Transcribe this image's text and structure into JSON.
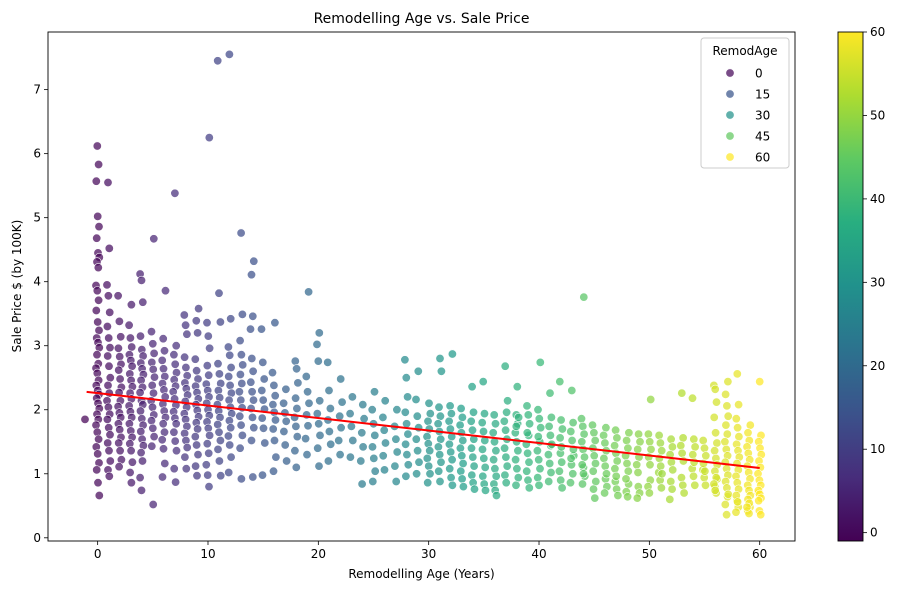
{
  "chart_data": {
    "type": "scatter",
    "title": "Remodelling Age vs. Sale Price",
    "xlabel": "Remodelling Age (Years)",
    "ylabel": "Sale Price $ (by 100K)",
    "xlim": [
      -4.5,
      63.2
    ],
    "ylim": [
      -0.05,
      7.9
    ],
    "xticks": [
      0,
      10,
      20,
      30,
      40,
      50,
      60
    ],
    "yticks": [
      0,
      1,
      2,
      3,
      4,
      5,
      6,
      7
    ],
    "grid": false,
    "colormap": "viridis",
    "color_range": [
      -1,
      60
    ],
    "colorbar_ticks": [
      0,
      10,
      20,
      30,
      40,
      50,
      60
    ],
    "legend": {
      "title": "RemodAge",
      "position": "top-right",
      "entries": [
        "0",
        "15",
        "30",
        "45",
        "60"
      ],
      "entry_values": [
        0,
        15,
        30,
        45,
        60
      ]
    },
    "trend_line": {
      "color": "#ff0000",
      "x": [
        -1,
        60
      ],
      "y": [
        2.28,
        1.09
      ]
    },
    "points_x": [
      -1,
      0,
      0,
      0,
      0,
      0,
      0,
      0,
      0,
      0,
      0,
      0,
      0,
      0,
      0,
      0,
      0,
      0,
      0,
      0,
      0,
      0,
      0,
      0,
      0,
      0,
      0,
      0,
      0,
      0,
      0,
      0,
      0,
      0,
      0,
      0,
      0,
      0,
      0,
      0,
      0,
      0,
      1,
      1,
      1,
      1,
      1,
      1,
      1,
      1,
      1,
      1,
      1,
      1,
      1,
      1,
      1,
      1,
      1,
      1,
      1,
      1,
      1,
      1,
      1,
      1,
      2,
      2,
      2,
      2,
      2,
      2,
      2,
      2,
      2,
      2,
      2,
      2,
      2,
      2,
      2,
      2,
      2,
      2,
      2,
      2,
      2,
      3,
      3,
      3,
      3,
      3,
      3,
      3,
      3,
      3,
      3,
      3,
      3,
      3,
      3,
      3,
      3,
      3,
      3,
      3,
      3,
      3,
      3,
      3,
      4,
      4,
      4,
      4,
      4,
      4,
      4,
      4,
      4,
      4,
      4,
      4,
      4,
      4,
      4,
      4,
      4,
      4,
      4,
      4,
      4,
      4,
      4,
      4,
      5,
      5,
      5,
      5,
      5,
      5,
      5,
      5,
      5,
      5,
      5,
      5,
      5,
      5,
      5,
      5,
      5,
      6,
      6,
      6,
      6,
      6,
      6,
      6,
      6,
      6,
      6,
      6,
      6,
      6,
      6,
      6,
      6,
      6,
      6,
      7,
      7,
      7,
      7,
      7,
      7,
      7,
      7,
      7,
      7,
      7,
      7,
      7,
      7,
      7,
      7,
      7,
      7,
      8,
      8,
      8,
      8,
      8,
      8,
      8,
      8,
      8,
      8,
      8,
      8,
      8,
      8,
      8,
      8,
      8,
      8,
      8,
      9,
      9,
      9,
      9,
      9,
      9,
      9,
      9,
      9,
      9,
      9,
      9,
      9,
      9,
      9,
      9,
      9,
      9,
      9,
      10,
      10,
      10,
      10,
      10,
      10,
      10,
      10,
      10,
      10,
      10,
      10,
      10,
      10,
      10,
      10,
      10,
      10,
      10,
      10,
      11,
      11,
      11,
      11,
      11,
      11,
      11,
      11,
      11,
      11,
      11,
      11,
      11,
      11,
      11,
      11,
      11,
      12,
      12,
      12,
      12,
      12,
      12,
      12,
      12,
      12,
      12,
      12,
      12,
      12,
      12,
      12,
      12,
      12,
      13,
      13,
      13,
      13,
      13,
      13,
      13,
      13,
      13,
      13,
      13,
      13,
      13,
      13,
      13,
      14,
      14,
      14,
      14,
      14,
      14,
      14,
      14,
      14,
      14,
      14,
      14,
      14,
      14,
      15,
      15,
      15,
      15,
      15,
      15,
      15,
      15,
      15,
      15,
      16,
      16,
      16,
      16,
      16,
      16,
      16,
      16,
      16,
      16,
      16,
      17,
      17,
      17,
      17,
      17,
      17,
      17,
      18,
      18,
      18,
      18,
      18,
      18,
      18,
      18,
      18,
      18,
      19,
      19,
      19,
      19,
      19,
      19,
      19,
      19,
      20,
      20,
      20,
      20,
      20,
      20,
      20,
      20,
      20,
      21,
      21,
      21,
      21,
      21,
      21,
      21,
      22,
      22,
      22,
      22,
      22,
      22,
      23,
      23,
      23,
      23,
      23,
      24,
      24,
      24,
      24,
      24,
      24,
      25,
      25,
      25,
      25,
      25,
      25,
      25,
      25,
      26,
      26,
      26,
      26,
      26,
      26,
      27,
      27,
      27,
      27,
      27,
      27,
      28,
      28,
      28,
      28,
      28,
      28,
      28,
      28,
      28,
      28,
      29,
      29,
      29,
      29,
      29,
      29,
      29,
      29,
      30,
      30,
      30,
      30,
      30,
      30,
      30,
      30,
      30,
      30,
      30,
      31,
      31,
      31,
      31,
      31,
      31,
      31,
      31,
      31,
      31,
      31,
      31,
      32,
      32,
      32,
      32,
      32,
      32,
      32,
      32,
      32,
      32,
      32,
      32,
      33,
      33,
      33,
      33,
      33,
      33,
      33,
      33,
      33,
      33,
      33,
      34,
      34,
      34,
      34,
      34,
      34,
      34,
      34,
      34,
      34,
      34,
      35,
      35,
      35,
      35,
      35,
      35,
      35,
      35,
      35,
      35,
      35,
      36,
      36,
      36,
      36,
      36,
      36,
      36,
      36,
      36,
      36,
      36,
      37,
      37,
      37,
      37,
      37,
      37,
      37,
      37,
      37,
      37,
      37,
      38,
      38,
      38,
      38,
      38,
      38,
      38,
      38,
      38,
      38,
      38,
      38,
      39,
      39,
      39,
      39,
      39,
      39,
      39,
      39,
      39,
      39,
      39,
      40,
      40,
      40,
      40,
      40,
      40,
      40,
      40,
      40,
      40,
      40,
      41,
      41,
      41,
      41,
      41,
      41,
      41,
      41,
      41,
      41,
      42,
      42,
      42,
      42,
      42,
      42,
      42,
      42,
      42,
      42,
      43,
      43,
      43,
      43,
      43,
      43,
      43,
      43,
      43,
      43,
      44,
      44,
      44,
      44,
      44,
      44,
      44,
      44,
      44,
      44,
      44,
      44,
      45,
      45,
      45,
      45,
      45,
      45,
      45,
      45,
      45,
      45,
      46,
      46,
      46,
      46,
      46,
      46,
      46,
      46,
      46,
      46,
      47,
      47,
      47,
      47,
      47,
      47,
      47,
      47,
      47,
      47,
      48,
      48,
      48,
      48,
      48,
      48,
      48,
      48,
      48,
      48,
      49,
      49,
      49,
      49,
      49,
      49,
      49,
      49,
      49,
      50,
      50,
      50,
      50,
      50,
      50,
      50,
      50,
      50,
      51,
      51,
      51,
      51,
      51,
      51,
      51,
      51,
      51,
      52,
      52,
      52,
      52,
      52,
      52,
      52,
      52,
      53,
      53,
      53,
      53,
      53,
      53,
      53,
      53,
      54,
      54,
      54,
      54,
      54,
      54,
      54,
      54,
      55,
      55,
      55,
      55,
      55,
      55,
      55,
      55,
      56,
      56,
      56,
      56,
      56,
      56,
      56,
      56,
      56,
      56,
      56,
      56,
      56,
      56,
      56,
      56,
      57,
      57,
      57,
      57,
      57,
      57,
      57,
      57,
      57,
      57,
      57,
      57,
      57,
      57,
      57,
      57,
      57,
      57,
      58,
      58,
      58,
      58,
      58,
      58,
      58,
      58,
      58,
      58,
      58,
      58,
      58,
      58,
      58,
      58,
      58,
      58,
      59,
      59,
      59,
      59,
      59,
      59,
      59,
      59,
      59,
      59,
      59,
      59,
      59,
      59,
      59,
      59,
      59,
      59,
      60,
      60,
      60,
      60,
      60,
      60,
      60,
      60,
      60,
      60,
      60,
      60,
      60,
      60,
      60,
      60,
      60
    ],
    "points_y": [
      1.85,
      6.12,
      5.83,
      5.57,
      5.02,
      4.86,
      4.68,
      4.45,
      4.38,
      4.31,
      4.22,
      3.94,
      3.86,
      3.71,
      3.55,
      3.37,
      3.24,
      3.12,
      3.05,
      2.97,
      2.86,
      2.72,
      2.65,
      2.57,
      2.46,
      2.38,
      2.3,
      2.24,
      2.18,
      2.1,
      2.02,
      1.93,
      1.85,
      1.76,
      1.65,
      1.54,
      1.42,
      1.31,
      1.17,
      1.06,
      0.86,
      0.66,
      5.55,
      4.52,
      3.95,
      3.78,
      3.52,
      3.3,
      3.12,
      2.97,
      2.84,
      2.68,
      2.5,
      2.38,
      2.26,
      2.14,
      2.04,
      1.93,
      1.85,
      1.72,
      1.61,
      1.48,
      1.36,
      1.2,
      1.06,
      0.96,
      3.78,
      3.38,
      3.14,
      2.96,
      2.83,
      2.71,
      2.62,
      2.48,
      2.35,
      2.27,
      2.14,
      2.05,
      1.95,
      1.88,
      1.78,
      1.69,
      1.57,
      1.48,
      1.36,
      1.22,
      1.11,
      3.64,
      3.32,
      3.12,
      2.98,
      2.86,
      2.77,
      2.68,
      2.56,
      2.46,
      2.36,
      2.26,
      2.17,
      2.06,
      1.97,
      1.88,
      1.78,
      1.67,
      1.57,
      1.47,
      1.36,
      1.18,
      1.02,
      0.86,
      4.12,
      4.02,
      3.68,
      3.15,
      2.94,
      2.84,
      2.73,
      2.64,
      2.55,
      2.46,
      2.35,
      2.27,
      2.14,
      2.08,
      1.98,
      1.86,
      1.76,
      1.66,
      1.54,
      1.44,
      1.33,
      1.2,
      0.94,
      0.74,
      4.67,
      3.22,
      3.03,
      2.88,
      2.74,
      2.63,
      2.51,
      2.38,
      2.26,
      2.14,
      2.04,
      1.92,
      1.83,
      1.71,
      1.58,
      1.43,
      0.52,
      3.86,
      3.11,
      2.92,
      2.77,
      2.64,
      2.52,
      2.41,
      2.31,
      2.2,
      2.09,
      1.98,
      1.88,
      1.78,
      1.65,
      1.53,
      1.39,
      1.16,
      0.95,
      5.38,
      3.0,
      2.86,
      2.71,
      2.58,
      2.47,
      2.37,
      2.28,
      2.17,
      2.07,
      1.97,
      1.87,
      1.78,
      1.65,
      1.51,
      1.36,
      1.08,
      0.87,
      3.48,
      3.32,
      3.18,
      2.82,
      2.66,
      2.53,
      2.42,
      2.33,
      2.23,
      2.13,
      2.04,
      1.94,
      1.85,
      1.74,
      1.63,
      1.52,
      1.41,
      1.26,
      1.08,
      3.58,
      3.39,
      3.2,
      2.79,
      2.61,
      2.48,
      2.37,
      2.27,
      2.17,
      2.08,
      1.99,
      1.89,
      1.8,
      1.7,
      1.58,
      1.45,
      1.3,
      1.12,
      0.97,
      6.25,
      3.36,
      3.15,
      2.96,
      2.69,
      2.54,
      2.4,
      2.3,
      2.2,
      2.1,
      2.0,
      1.91,
      1.81,
      1.71,
      1.6,
      1.47,
      1.32,
      1.14,
      0.98,
      0.8,
      7.45,
      3.82,
      3.37,
      2.72,
      2.56,
      2.41,
      2.3,
      2.19,
      2.08,
      1.98,
      1.88,
      1.77,
      1.65,
      1.52,
      1.38,
      1.2,
      0.97,
      7.55,
      3.42,
      2.98,
      2.85,
      2.66,
      2.52,
      2.38,
      2.26,
      2.15,
      2.04,
      1.94,
      1.83,
      1.72,
      1.59,
      1.45,
      1.26,
      1.02,
      4.76,
      3.49,
      3.08,
      2.86,
      2.7,
      2.55,
      2.41,
      2.28,
      2.15,
      2.03,
      1.9,
      1.76,
      1.6,
      1.4,
      0.92,
      4.32,
      4.11,
      3.46,
      3.26,
      2.8,
      2.6,
      2.43,
      2.28,
      2.15,
      2.02,
      1.88,
      1.72,
      1.52,
      0.95,
      3.26,
      2.74,
      2.48,
      2.3,
      2.15,
      2.01,
      1.87,
      1.71,
      1.48,
      0.98,
      3.36,
      2.58,
      2.38,
      2.22,
      2.08,
      1.96,
      1.84,
      1.7,
      1.52,
      1.26,
      1.04,
      2.32,
      2.1,
      1.95,
      1.82,
      1.66,
      1.45,
      1.2,
      2.76,
      2.64,
      2.42,
      2.18,
      2.02,
      1.88,
      1.74,
      1.58,
      1.36,
      1.1,
      3.84,
      2.52,
      2.28,
      2.1,
      1.92,
      1.75,
      1.55,
      1.3,
      3.2,
      3.02,
      2.76,
      2.14,
      1.94,
      1.78,
      1.6,
      1.4,
      1.12,
      2.74,
      2.3,
      2.02,
      1.84,
      1.66,
      1.46,
      1.2,
      2.48,
      2.12,
      1.9,
      1.72,
      1.52,
      1.3,
      2.2,
      1.94,
      1.74,
      1.52,
      1.26,
      2.08,
      1.86,
      1.64,
      1.42,
      1.2,
      0.84,
      2.28,
      2.0,
      1.78,
      1.6,
      1.42,
      1.24,
      1.04,
      0.88,
      2.14,
      1.88,
      1.68,
      1.48,
      1.28,
      1.06,
      2.0,
      1.74,
      1.54,
      1.34,
      1.12,
      0.88,
      2.78,
      2.5,
      2.2,
      1.96,
      1.78,
      1.62,
      1.46,
      1.3,
      1.14,
      0.96,
      2.6,
      2.16,
      1.9,
      1.72,
      1.54,
      1.36,
      1.18,
      1.0,
      2.1,
      1.94,
      1.82,
      1.7,
      1.58,
      1.47,
      1.36,
      1.24,
      1.12,
      1.0,
      0.86,
      2.8,
      2.6,
      2.04,
      1.9,
      1.78,
      1.66,
      1.54,
      1.42,
      1.3,
      1.18,
      1.04,
      0.88,
      2.87,
      2.06,
      1.94,
      1.82,
      1.7,
      1.58,
      1.46,
      1.34,
      1.22,
      1.08,
      0.94,
      0.82,
      2.02,
      1.88,
      1.76,
      1.64,
      1.52,
      1.4,
      1.28,
      1.16,
      1.04,
      0.92,
      0.8,
      2.36,
      1.96,
      1.82,
      1.68,
      1.54,
      1.4,
      1.26,
      1.12,
      0.98,
      0.86,
      0.76,
      2.44,
      1.94,
      1.8,
      1.66,
      1.52,
      1.38,
      1.24,
      1.1,
      0.96,
      0.84,
      0.74,
      1.92,
      1.78,
      1.64,
      1.5,
      1.36,
      1.22,
      1.08,
      0.96,
      0.84,
      0.74,
      0.66,
      2.68,
      1.96,
      1.82,
      1.68,
      1.54,
      1.4,
      1.26,
      1.12,
      0.98,
      0.86,
      2.14,
      1.92,
      1.78,
      1.64,
      1.5,
      1.36,
      1.22,
      1.08,
      0.94,
      0.82,
      2.36,
      1.88,
      1.74,
      1.6,
      1.46,
      1.32,
      1.18,
      1.04,
      0.9,
      0.78,
      2.06,
      1.92,
      1.78,
      1.64,
      1.5,
      1.36,
      1.22,
      1.08,
      0.94,
      0.82,
      2.74,
      2.0,
      1.86,
      1.72,
      1.58,
      1.44,
      1.3,
      1.16,
      1.02,
      0.88,
      2.26,
      1.88,
      1.74,
      1.6,
      1.46,
      1.32,
      1.18,
      1.04,
      0.9,
      0.78,
      2.44,
      1.84,
      1.7,
      1.56,
      1.42,
      1.28,
      1.14,
      1.0,
      0.86,
      2.3,
      1.8,
      1.66,
      1.52,
      1.38,
      1.24,
      1.1,
      0.96,
      0.84,
      3.76,
      1.86,
      1.74,
      1.62,
      1.5,
      1.38,
      1.26,
      1.14,
      1.0,
      0.88,
      0.76,
      0.62,
      1.76,
      1.64,
      1.52,
      1.4,
      1.28,
      1.16,
      1.04,
      0.92,
      0.8,
      0.7,
      1.72,
      1.6,
      1.48,
      1.36,
      1.24,
      1.12,
      1.0,
      0.88,
      0.76,
      0.66,
      1.68,
      1.56,
      1.44,
      1.32,
      1.2,
      1.08,
      0.96,
      0.84,
      0.72,
      0.64,
      1.64,
      1.52,
      1.4,
      1.28,
      1.16,
      1.04,
      0.92,
      0.8,
      0.7,
      0.62,
      1.62,
      1.5,
      1.38,
      1.26,
      1.14,
      1.02,
      0.9,
      0.8,
      0.7,
      2.16,
      1.62,
      1.5,
      1.38,
      1.26,
      1.14,
      1.02,
      0.9,
      0.78,
      1.6,
      1.48,
      1.36,
      1.24,
      1.12,
      1.0,
      0.88,
      0.76,
      0.6,
      1.54,
      1.42,
      1.3,
      1.18,
      1.06,
      0.94,
      0.82,
      0.7,
      2.26,
      1.56,
      1.44,
      1.32,
      1.2,
      1.08,
      0.96,
      0.82,
      2.18,
      1.54,
      1.42,
      1.3,
      1.18,
      1.06,
      0.94,
      0.82,
      1.52,
      1.4,
      1.28,
      1.16,
      1.04,
      0.92,
      0.8,
      0.7,
      2.38,
      2.32,
      2.12,
      1.88,
      1.64,
      1.48,
      1.36,
      1.24,
      1.14,
      1.04,
      0.94,
      0.84,
      0.74,
      0.64,
      0.52,
      0.36,
      2.44,
      2.24,
      2.06,
      1.9,
      1.76,
      1.62,
      1.5,
      1.38,
      1.28,
      1.18,
      1.08,
      0.98,
      0.88,
      0.78,
      0.68,
      0.58,
      0.48,
      0.4,
      2.56,
      2.08,
      1.86,
      1.72,
      1.58,
      1.46,
      1.36,
      1.26,
      1.16,
      1.06,
      0.96,
      0.86,
      0.76,
      0.66,
      0.56,
      0.48,
      0.42,
      0.38,
      1.76,
      1.64,
      1.52,
      1.42,
      1.32,
      1.22,
      1.12,
      1.02,
      0.92,
      0.82,
      0.74,
      0.66,
      0.6,
      0.54,
      0.48,
      0.42,
      0.36,
      0.7,
      2.44,
      1.6,
      1.5,
      1.4,
      1.3,
      1.2,
      1.1,
      1.0,
      0.9,
      0.82,
      0.74,
      0.68,
      0.62,
      0.58,
      0.54,
      0.86,
      0.96
    ]
  }
}
